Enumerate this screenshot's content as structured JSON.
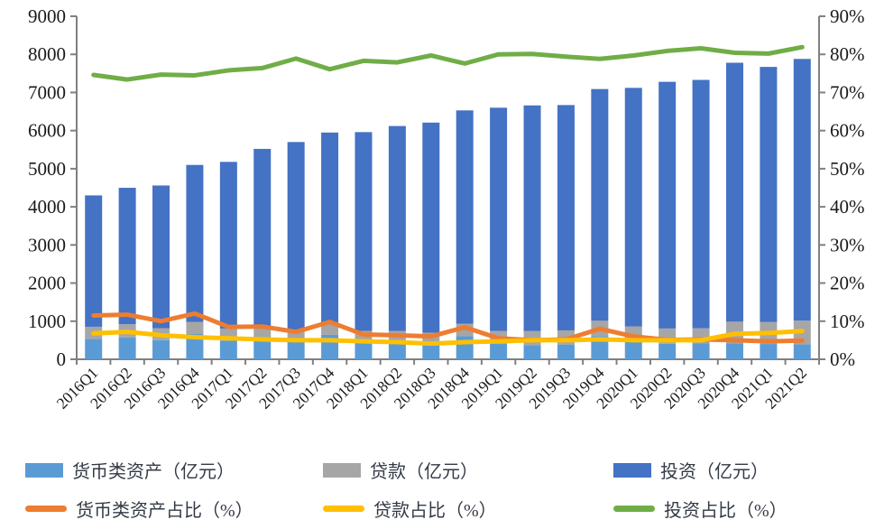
{
  "chart_data": {
    "type": "bar",
    "subtype": "stacked-bars-with-percentage-lines",
    "title": "",
    "xlabel": "",
    "ylabel_left": "",
    "ylabel_right": "",
    "categories": [
      "2016Q1",
      "2016Q2",
      "2016Q3",
      "2016Q4",
      "2017Q1",
      "2017Q2",
      "2017Q3",
      "2017Q4",
      "2018Q1",
      "2018Q2",
      "2018Q3",
      "2018Q4",
      "2019Q1",
      "2019Q2",
      "2019Q3",
      "2019Q4",
      "2020Q1",
      "2020Q2",
      "2020Q3",
      "2020Q4",
      "2021Q1",
      "2021Q2"
    ],
    "bar_series": [
      {
        "name": "货币类资产（亿元）",
        "color": "#5B9BD5",
        "stack_order": 1,
        "values": [
          531,
          570,
          501,
          663,
          490,
          526,
          450,
          641,
          433,
          435,
          415,
          606,
          402,
          370,
          387,
          610,
          471,
          408,
          415,
          422,
          401,
          394
        ]
      },
      {
        "name": "贷款（亿元）",
        "color": "#A6A6A6",
        "stack_order": 2,
        "values": [
          323,
          351,
          316,
          320,
          317,
          318,
          313,
          327,
          313,
          310,
          284,
          325,
          344,
          370,
          372,
          401,
          393,
          400,
          399,
          565,
          576,
          620
        ]
      },
      {
        "name": "投资（亿元）",
        "color": "#4472C4",
        "stack_order": 3,
        "values": [
          3446,
          3578,
          3743,
          4116,
          4372,
          4676,
          4937,
          4981,
          5214,
          5375,
          5511,
          5599,
          5854,
          5921,
          5911,
          6079,
          6257,
          6472,
          6516,
          6793,
          6694,
          6866
        ]
      }
    ],
    "line_series": [
      {
        "name": "货币类资产占比（%）",
        "color": "#ED7D31",
        "values": [
          11.5,
          11.7,
          10.0,
          12.0,
          8.5,
          8.6,
          7.2,
          9.8,
          6.5,
          6.3,
          6.0,
          8.4,
          5.5,
          5.0,
          5.2,
          8.0,
          6.0,
          5.1,
          5.2,
          5.0,
          4.7,
          4.9
        ]
      },
      {
        "name": "贷款占比（%）",
        "color": "#FFC000",
        "values": [
          6.8,
          7.2,
          6.3,
          5.8,
          5.5,
          5.2,
          5.0,
          5.0,
          4.7,
          4.5,
          4.1,
          4.5,
          4.7,
          5.0,
          5.0,
          5.2,
          5.0,
          5.0,
          5.0,
          6.7,
          6.9,
          7.4
        ]
      },
      {
        "name": "投资占比（%）",
        "color": "#70AD47",
        "values": [
          74.6,
          73.4,
          74.7,
          74.5,
          75.8,
          76.4,
          78.9,
          76.1,
          78.3,
          77.9,
          79.7,
          77.6,
          80.0,
          80.1,
          79.4,
          78.8,
          79.7,
          80.9,
          81.6,
          80.4,
          80.2,
          81.9
        ]
      }
    ],
    "left_axis": {
      "min": 0,
      "max": 9000,
      "step": 1000,
      "ticks": [
        "0",
        "1000",
        "2000",
        "3000",
        "4000",
        "5000",
        "6000",
        "7000",
        "8000",
        "9000"
      ]
    },
    "right_axis": {
      "min": 0,
      "max": 90,
      "step": 10,
      "ticks": [
        "0%",
        "10%",
        "20%",
        "30%",
        "40%",
        "50%",
        "60%",
        "70%",
        "80%",
        "90%"
      ]
    },
    "grid": false,
    "legend_position": "bottom"
  },
  "legend": {
    "items": [
      {
        "label": "货币类资产（亿元）",
        "swatch": "bar",
        "color": "#5B9BD5"
      },
      {
        "label": "贷款（亿元）",
        "swatch": "bar",
        "color": "#A6A6A6"
      },
      {
        "label": "投资（亿元）",
        "swatch": "bar",
        "color": "#4472C4"
      },
      {
        "label": "货币类资产占比（%）",
        "swatch": "line",
        "color": "#ED7D31"
      },
      {
        "label": "贷款占比（%）",
        "swatch": "line",
        "color": "#FFC000"
      },
      {
        "label": "投资占比（%）",
        "swatch": "line",
        "color": "#70AD47"
      }
    ]
  },
  "style": {
    "axis_color": "#808080",
    "tick_label_color": "#1a1a1a",
    "background": "#ffffff"
  }
}
